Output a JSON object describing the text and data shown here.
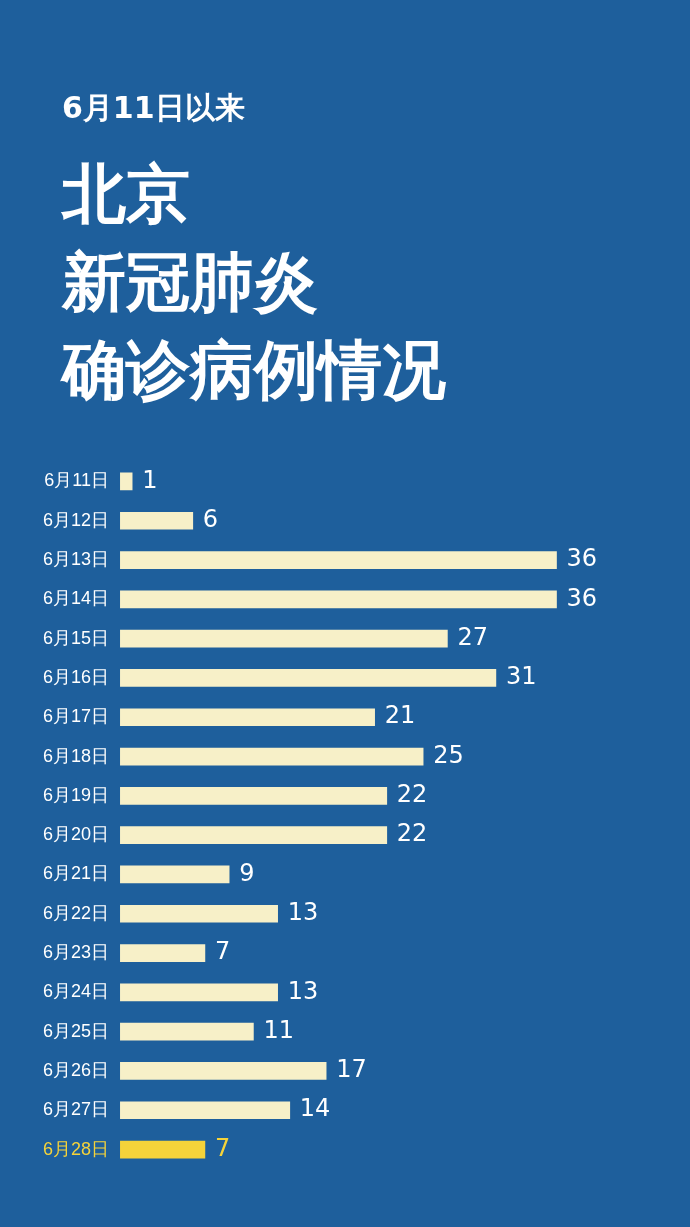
{
  "chart_data": {
    "type": "bar",
    "orientation": "horizontal",
    "subtitle": "6月11日以来",
    "title": "北京新冠肺炎确诊病例情况",
    "categories": [
      "6月11日",
      "6月12日",
      "6月13日",
      "6月14日",
      "6月15日",
      "6月16日",
      "6月17日",
      "6月18日",
      "6月19日",
      "6月20日",
      "6月21日",
      "6月22日",
      "6月23日",
      "6月24日",
      "6月25日",
      "6月26日",
      "6月27日",
      "6月28日"
    ],
    "values": [
      1,
      6,
      36,
      36,
      27,
      31,
      21,
      25,
      22,
      22,
      9,
      13,
      7,
      13,
      11,
      17,
      14,
      7
    ],
    "colors": [
      "#f7f0c8",
      "#f7f0c8",
      "#f7f0c8",
      "#f7f0c8",
      "#f7f0c8",
      "#f7f0c8",
      "#f7f0c8",
      "#f7f0c8",
      "#f7f0c8",
      "#f7f0c8",
      "#f7f0c8",
      "#f7f0c8",
      "#f7f0c8",
      "#f7f0c8",
      "#f7f0c8",
      "#f7f0c8",
      "#f7f0c8",
      "#f5d33a"
    ],
    "data_labels": true,
    "tick_labels": "y",
    "legend": false
  }
}
